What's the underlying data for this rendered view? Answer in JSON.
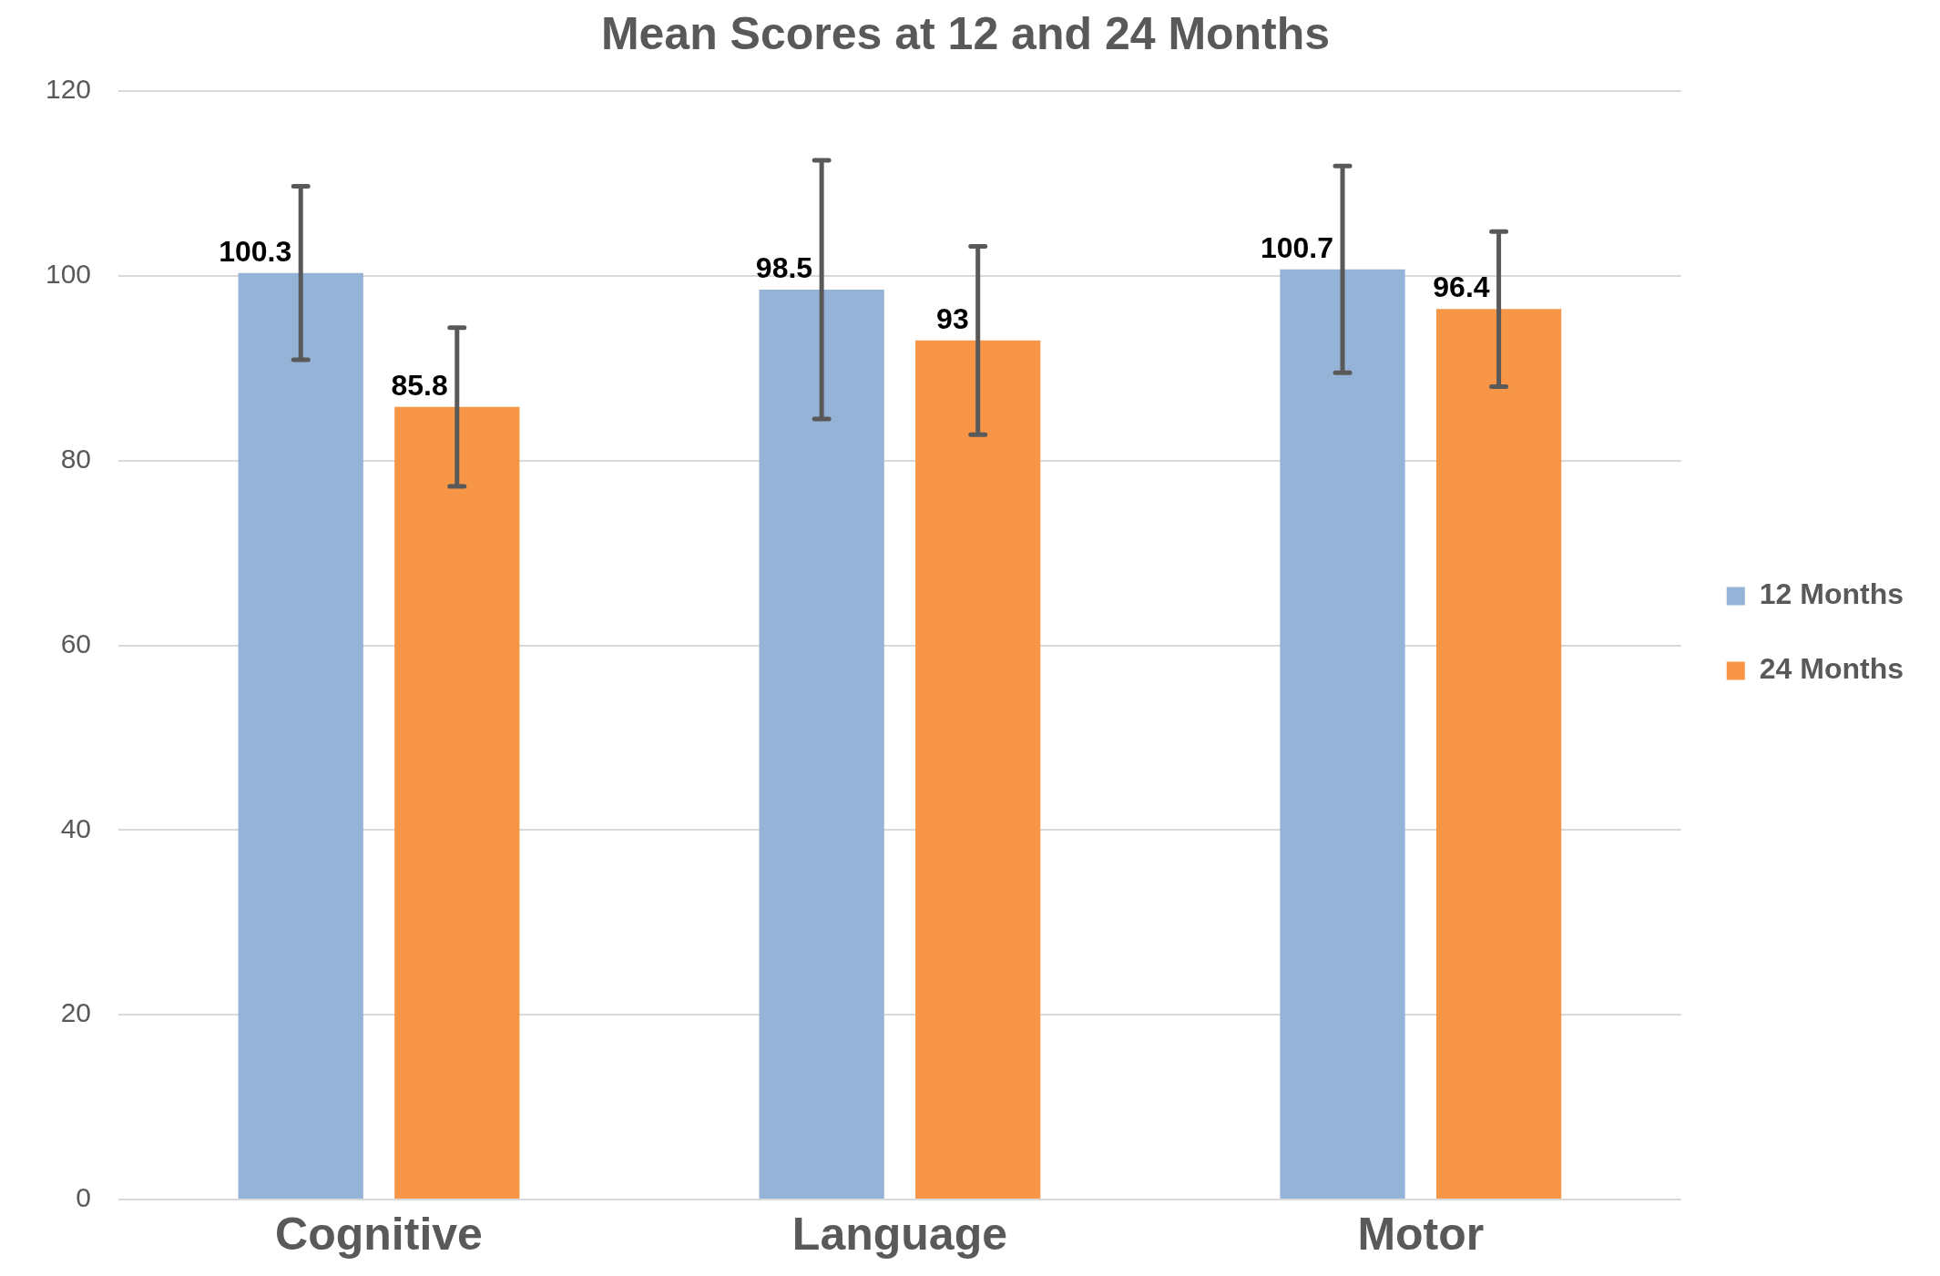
{
  "chart_data": {
    "type": "bar",
    "title": "Mean Scores at 12 and 24 Months",
    "categories": [
      "Cognitive",
      "Language",
      "Motor"
    ],
    "series": [
      {
        "name": "12 Months",
        "color": "#95b3d7",
        "values": [
          100.3,
          98.5,
          100.7
        ],
        "errors": [
          9.4,
          14,
          11.2
        ]
      },
      {
        "name": "24 Months",
        "color": "#f79646",
        "values": [
          85.8,
          93,
          96.4
        ],
        "errors": [
          8.6,
          10.2,
          8.4
        ]
      }
    ],
    "ylim": [
      0,
      120
    ],
    "yticks": [
      0,
      20,
      40,
      60,
      80,
      100,
      120
    ],
    "grid": "y",
    "legend": "right",
    "data_labels": true
  }
}
